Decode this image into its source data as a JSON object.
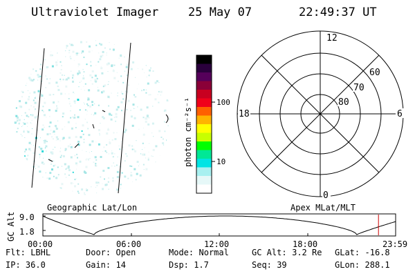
{
  "header": {
    "instrument": "Ultraviolet Imager",
    "date": "25 May 07",
    "time": "22:49:37 UT"
  },
  "colorbar": {
    "unit_label": "photon cm⁻²s⁻¹",
    "ticks": [
      "100",
      "10"
    ],
    "colors": [
      "#000000",
      "#2a003c",
      "#55005a",
      "#8a0038",
      "#c80020",
      "#f0001a",
      "#ff6000",
      "#ffb400",
      "#ffff00",
      "#c8ff00",
      "#00ff00",
      "#00e896",
      "#00e4e4",
      "#a8f0f0",
      "#e6f8f8",
      "#ffffff"
    ]
  },
  "polar_plot": {
    "mlt_labels": {
      "top": "12",
      "left": "18",
      "right": "6",
      "bottom": "0"
    },
    "lat_labels": [
      "60",
      "70",
      "80"
    ]
  },
  "timeline": {
    "y_axis_title": "GC Alt",
    "y_ticks": [
      "9.0",
      "1.8"
    ],
    "left_caption": "Geographic Lat/Lon",
    "right_caption": "Apex MLat/MLT",
    "x_ticks": [
      "00:00",
      "06:00",
      "12:00",
      "18:00",
      "23:59"
    ],
    "marker_time": "22:49",
    "marker_color": "#cc0000"
  },
  "status": {
    "row1": [
      {
        "label": "Flt:",
        "value": "LBHL"
      },
      {
        "label": "Door:",
        "value": "Open"
      },
      {
        "label": "Mode:",
        "value": "Normal"
      },
      {
        "label": "GC Alt:",
        "value": "3.2 Re"
      },
      {
        "label": "GLat:",
        "value": "-16.8"
      }
    ],
    "row2": [
      {
        "label": "IP:",
        "value": "36.0"
      },
      {
        "label": "Gain:",
        "value": "14"
      },
      {
        "label": "Dsp:",
        "value": "1.7"
      },
      {
        "label": "Seq:",
        "value": "39"
      },
      {
        "label": "GLon:",
        "value": "288.1"
      }
    ]
  }
}
